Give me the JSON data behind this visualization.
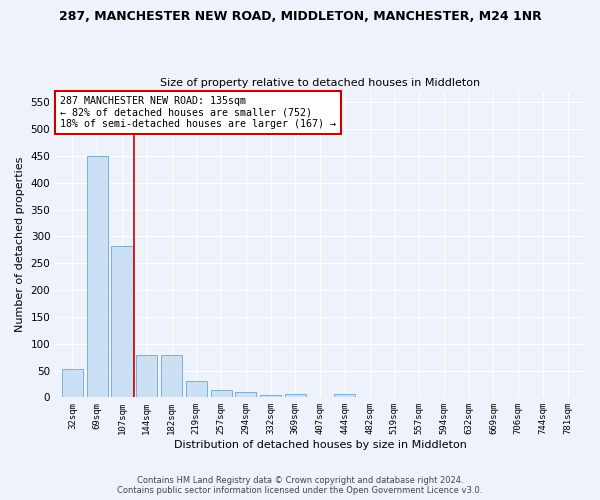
{
  "title1": "287, MANCHESTER NEW ROAD, MIDDLETON, MANCHESTER, M24 1NR",
  "title2": "Size of property relative to detached houses in Middleton",
  "xlabel": "Distribution of detached houses by size in Middleton",
  "ylabel": "Number of detached properties",
  "footer1": "Contains HM Land Registry data © Crown copyright and database right 2024.",
  "footer2": "Contains public sector information licensed under the Open Government Licence v3.0.",
  "bin_labels": [
    "32sqm",
    "69sqm",
    "107sqm",
    "144sqm",
    "182sqm",
    "219sqm",
    "257sqm",
    "294sqm",
    "332sqm",
    "369sqm",
    "407sqm",
    "444sqm",
    "482sqm",
    "519sqm",
    "557sqm",
    "594sqm",
    "632sqm",
    "669sqm",
    "706sqm",
    "744sqm",
    "781sqm"
  ],
  "bar_values": [
    53,
    450,
    283,
    78,
    79,
    30,
    14,
    10,
    5,
    6,
    0,
    6,
    0,
    0,
    0,
    0,
    0,
    0,
    0,
    0,
    0
  ],
  "bar_color": "#cce0f5",
  "bar_edge_color": "#7ab0d4",
  "background_color": "#eef3fb",
  "grid_color": "#ffffff",
  "annotation_line1": "287 MANCHESTER NEW ROAD: 135sqm",
  "annotation_line2": "← 82% of detached houses are smaller (752)",
  "annotation_line3": "18% of semi-detached houses are larger (167) →",
  "annotation_box_color": "#ffffff",
  "annotation_box_edge": "#cc0000",
  "property_line_color": "#cc0000",
  "property_line_x": 2.5,
  "ylim": [
    0,
    570
  ],
  "yticks": [
    0,
    50,
    100,
    150,
    200,
    250,
    300,
    350,
    400,
    450,
    500,
    550
  ]
}
